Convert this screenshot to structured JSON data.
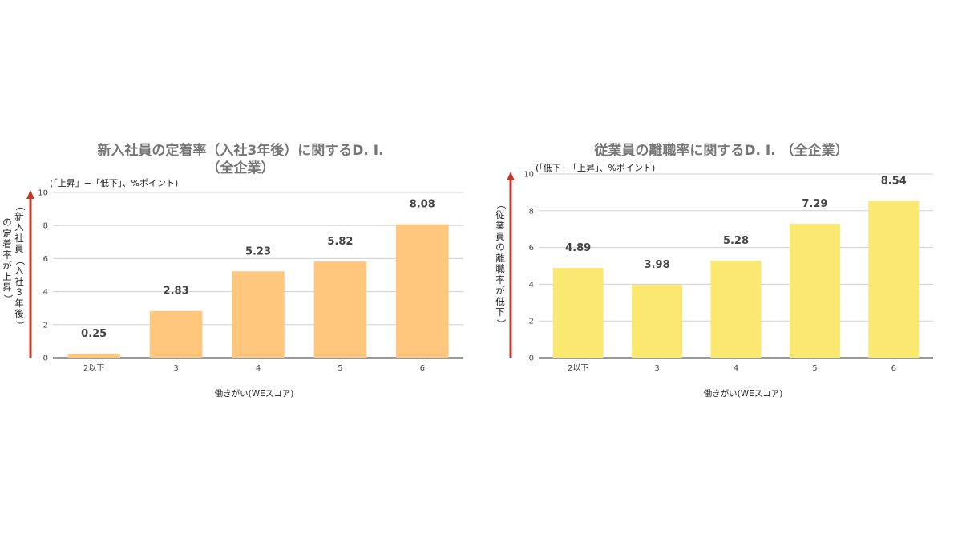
{
  "chart_data": [
    {
      "type": "bar",
      "title": "新入社員の定着率（入社3年後）に関するD. I.",
      "subtitle": "（全企業）",
      "unit_note": "(「上昇」−「低下」、%ポイント)",
      "ylabel": "（新入社員の定着率が上昇）",
      "ylabel_lines": [
        "（新入社員（入社３年後）",
        "の定着率が上昇）"
      ],
      "xlabel": "働きがい(WEスコア)",
      "categories": [
        "2以下",
        "3",
        "4",
        "5",
        "6"
      ],
      "values": [
        0.25,
        2.83,
        5.23,
        5.82,
        8.08
      ],
      "value_labels": [
        "0.25",
        "2.83",
        "5.23",
        "5.82",
        "8.08"
      ],
      "ylim": [
        0,
        10
      ],
      "yticks": [
        "0",
        "2",
        "4",
        "6",
        "8",
        "10"
      ],
      "bar_color": "#FFC77E",
      "arrow_color": "#C0392B",
      "grid": true,
      "legend": "none"
    },
    {
      "type": "bar",
      "title": "従業員の離職率に関するD. I. （全企業）",
      "subtitle": "",
      "unit_note": "(「低下−「上昇」、%ポイント)",
      "ylabel": "（従業員の離職率が低下）",
      "ylabel_lines": [
        "（従業員の離職率が低下）"
      ],
      "xlabel": "働きがい(WEスコア)",
      "categories": [
        "2以下",
        "3",
        "4",
        "5",
        "6"
      ],
      "values": [
        4.89,
        3.98,
        5.28,
        7.29,
        8.54
      ],
      "value_labels": [
        "4.89",
        "3.98",
        "5.28",
        "7.29",
        "8.54"
      ],
      "ylim": [
        0,
        10
      ],
      "yticks": [
        "0",
        "2",
        "4",
        "6",
        "8",
        "10"
      ],
      "bar_color": "#FBE870",
      "arrow_color": "#C0392B",
      "grid": true,
      "legend": "none"
    }
  ]
}
